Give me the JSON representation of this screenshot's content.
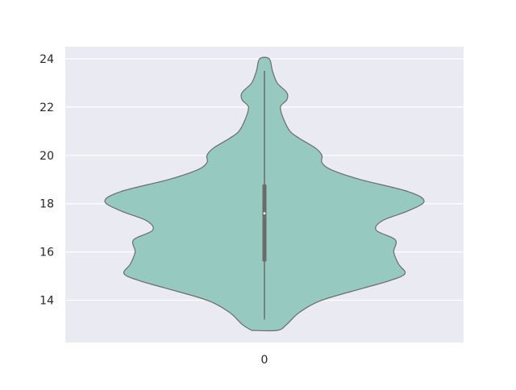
{
  "chart_data": {
    "type": "violin",
    "categories": [
      "0"
    ],
    "ylim": [
      12.25,
      24.5
    ],
    "yticks": [
      14,
      16,
      18,
      20,
      22,
      24
    ],
    "grid": true,
    "legend": "none",
    "colors": {
      "background": "#eaeaf2",
      "grid": "#ffffff",
      "violin_fill": "#96cac0",
      "violin_edge": "#6b6b6b",
      "box": "#6b6b6b",
      "median": "#ffffff"
    },
    "violins": [
      {
        "category": "0",
        "y_range": [
          12.75,
          24.0
        ],
        "whisker": [
          13.2,
          23.5
        ],
        "quartiles": [
          15.6,
          18.8
        ],
        "median": 17.6,
        "density": [
          {
            "y": 12.75,
            "d": 0.08
          },
          {
            "y": 13.0,
            "d": 0.14
          },
          {
            "y": 13.5,
            "d": 0.22
          },
          {
            "y": 14.0,
            "d": 0.36
          },
          {
            "y": 14.5,
            "d": 0.62
          },
          {
            "y": 14.8,
            "d": 0.78
          },
          {
            "y": 15.1,
            "d": 0.88
          },
          {
            "y": 15.5,
            "d": 0.84
          },
          {
            "y": 16.0,
            "d": 0.81
          },
          {
            "y": 16.5,
            "d": 0.82
          },
          {
            "y": 16.9,
            "d": 0.7
          },
          {
            "y": 17.3,
            "d": 0.74
          },
          {
            "y": 17.7,
            "d": 0.9
          },
          {
            "y": 18.1,
            "d": 1.0
          },
          {
            "y": 18.5,
            "d": 0.9
          },
          {
            "y": 19.0,
            "d": 0.6
          },
          {
            "y": 19.4,
            "d": 0.42
          },
          {
            "y": 19.7,
            "d": 0.36
          },
          {
            "y": 20.0,
            "d": 0.36
          },
          {
            "y": 20.3,
            "d": 0.32
          },
          {
            "y": 20.7,
            "d": 0.22
          },
          {
            "y": 21.0,
            "d": 0.16
          },
          {
            "y": 21.5,
            "d": 0.12
          },
          {
            "y": 22.0,
            "d": 0.1
          },
          {
            "y": 22.3,
            "d": 0.14
          },
          {
            "y": 22.6,
            "d": 0.14
          },
          {
            "y": 23.0,
            "d": 0.08
          },
          {
            "y": 23.5,
            "d": 0.05
          },
          {
            "y": 24.0,
            "d": 0.03
          }
        ]
      }
    ]
  }
}
